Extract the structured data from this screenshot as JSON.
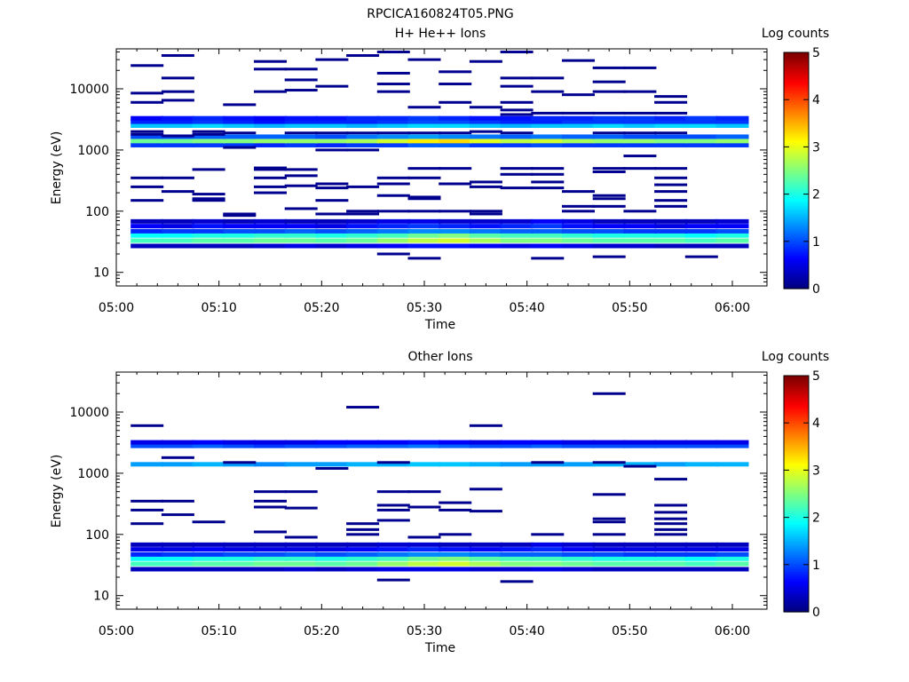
{
  "figure_title": "RPCICA160824T05.PNG",
  "chart_data": [
    {
      "type": "heatmap",
      "title": "H+ He++ Ions",
      "xlabel": "Time",
      "ylabel": "Energy (eV)",
      "x_ticks": [
        "05:00",
        "05:10",
        "05:20",
        "05:30",
        "05:40",
        "05:50",
        "06:00"
      ],
      "y_ticks": [
        "10",
        "100",
        "1000",
        "10000"
      ],
      "y_scale": "log",
      "ylim": [
        6,
        45000
      ],
      "colorbar": {
        "label": "Log counts",
        "ticks": [
          "0",
          "1",
          "2",
          "3",
          "4",
          "5"
        ],
        "range": [
          0,
          5
        ],
        "colormap": "jet"
      },
      "time_bins": [
        "05:03",
        "05:06",
        "05:09",
        "05:12",
        "05:15",
        "05:18",
        "05:21",
        "05:24",
        "05:27",
        "05:30",
        "05:33",
        "05:36",
        "05:39",
        "05:42",
        "05:45",
        "05:48",
        "05:51",
        "05:54",
        "05:57",
        "06:00"
      ],
      "energy_bands_ev": [
        {
          "energy": 27,
          "values": [
            0.3,
            0.3,
            0.3,
            0.3,
            0.4,
            0.5,
            0.4,
            0.5,
            0.6,
            0.7,
            0.7,
            0.6,
            0.5,
            0.6,
            0.5,
            0.4,
            0.4,
            0.3,
            0.3,
            0.3
          ]
        },
        {
          "energy": 33,
          "values": [
            2.2,
            2.2,
            2.3,
            2.3,
            2.4,
            2.4,
            2.3,
            2.4,
            2.6,
            2.8,
            2.9,
            2.7,
            2.5,
            2.5,
            2.4,
            2.3,
            2.3,
            2.3,
            2.2,
            2.3
          ]
        },
        {
          "energy": 40,
          "values": [
            1.9,
            1.9,
            2.0,
            2.0,
            2.1,
            2.1,
            2.0,
            2.1,
            2.2,
            2.4,
            2.5,
            2.3,
            2.2,
            2.2,
            2.1,
            2.0,
            2.0,
            2.0,
            1.9,
            2.0
          ]
        },
        {
          "energy": 47,
          "values": [
            0.8,
            0.9,
            0.9,
            1.0,
            1.0,
            1.1,
            1.0,
            1.1,
            1.2,
            1.3,
            1.3,
            1.2,
            1.1,
            1.1,
            1.0,
            1.0,
            0.9,
            0.9,
            0.9,
            1.0
          ]
        },
        {
          "energy": 57,
          "values": [
            0.6,
            0.5,
            0.7,
            0.6,
            0.6,
            0.6,
            0.5,
            0.7,
            0.8,
            0.9,
            0.8,
            0.7,
            0.8,
            0.9,
            0.7,
            0.6,
            0.6,
            0.5,
            0.6,
            0.6
          ]
        },
        {
          "energy": 68,
          "values": [
            0.3,
            0.3,
            0.4,
            0.3,
            0.4,
            0.3,
            0.3,
            0.4,
            0.5,
            0.5,
            0.4,
            0.4,
            0.4,
            0.6,
            0.5,
            0.3,
            0.3,
            0.3,
            0.3,
            0.4
          ]
        },
        {
          "energy": 1200,
          "values": [
            0.9,
            0.9,
            0.9,
            0.9,
            0.8,
            0.9,
            0.8,
            0.9,
            0.9,
            1.1,
            1.1,
            0.9,
            0.9,
            1.0,
            0.9,
            0.9,
            0.9,
            0.9,
            0.9,
            0.9
          ]
        },
        {
          "energy": 1400,
          "values": [
            2.4,
            2.4,
            2.5,
            2.5,
            2.6,
            2.6,
            2.6,
            2.7,
            2.9,
            3.2,
            3.3,
            3.0,
            2.8,
            2.9,
            2.7,
            2.6,
            2.6,
            2.5,
            2.5,
            2.6
          ]
        },
        {
          "energy": 1650,
          "values": [
            1.0,
            1.0,
            1.1,
            1.1,
            1.1,
            1.1,
            1.0,
            1.2,
            1.3,
            1.4,
            1.3,
            1.2,
            1.1,
            1.2,
            1.1,
            1.1,
            1.0,
            1.0,
            1.0,
            1.1
          ]
        },
        {
          "energy": 2500,
          "values": [
            1.6,
            1.6,
            1.7,
            1.6,
            1.5,
            1.6,
            1.6,
            1.5,
            1.6,
            1.7,
            1.7,
            1.6,
            1.5,
            1.6,
            1.6,
            1.7,
            1.6,
            1.7,
            1.7,
            1.6
          ]
        },
        {
          "energy": 2900,
          "values": [
            0.8,
            0.8,
            0.9,
            0.8,
            0.7,
            0.8,
            0.8,
            0.8,
            0.9,
            1.0,
            1.0,
            0.9,
            0.8,
            0.8,
            0.9,
            0.9,
            0.9,
            0.9,
            0.9,
            0.9
          ]
        },
        {
          "energy": 3300,
          "values": [
            0.6,
            0.7,
            0.8,
            0.7,
            0.6,
            0.7,
            0.7,
            0.8,
            0.8,
            0.9,
            0.8,
            0.7,
            0.7,
            0.8,
            0.8,
            0.9,
            0.9,
            0.8,
            0.9,
            0.8
          ]
        }
      ],
      "sparse_points": [
        {
          "t": "05:03",
          "e": [
            8500,
            6000,
            24000,
            2000,
            1800,
            250,
            150,
            350
          ]
        },
        {
          "t": "05:06",
          "e": [
            6500,
            9000,
            15000,
            35000,
            1700,
            350,
            210
          ]
        },
        {
          "t": "05:09",
          "e": [
            2000,
            1800,
            480,
            190,
            160,
            150
          ]
        },
        {
          "t": "05:12",
          "e": [
            5500,
            1900,
            1100,
            90,
            85
          ]
        },
        {
          "t": "05:15",
          "e": [
            28000,
            21000,
            9000,
            480,
            510,
            350,
            250,
            200
          ]
        },
        {
          "t": "05:18",
          "e": [
            21000,
            14000,
            9500,
            1900,
            480,
            380,
            260,
            110
          ]
        },
        {
          "t": "05:21",
          "e": [
            11000,
            30000,
            1900,
            1000,
            280,
            240,
            150,
            90
          ]
        },
        {
          "t": "05:24",
          "e": [
            35000,
            1900,
            1000,
            250,
            100,
            90
          ]
        },
        {
          "t": "05:27",
          "e": [
            40000,
            18000,
            12000,
            9000,
            1900,
            350,
            280,
            180,
            100,
            20
          ]
        },
        {
          "t": "05:30",
          "e": [
            30000,
            5000,
            1900,
            500,
            350,
            170,
            160,
            100,
            17
          ]
        },
        {
          "t": "05:33",
          "e": [
            19000,
            12000,
            6000,
            1900,
            500,
            280,
            100
          ]
        },
        {
          "t": "05:36",
          "e": [
            28000,
            5000,
            2000,
            300,
            250,
            100,
            90
          ]
        },
        {
          "t": "05:39",
          "e": [
            40000,
            15000,
            11000,
            6000,
            4500,
            3800,
            1900,
            500,
            400,
            240
          ]
        },
        {
          "t": "05:42",
          "e": [
            15000,
            9000,
            4000,
            500,
            400,
            300,
            240,
            17
          ]
        },
        {
          "t": "05:45",
          "e": [
            29000,
            8000,
            4000,
            210,
            120,
            100
          ]
        },
        {
          "t": "05:48",
          "e": [
            22000,
            13000,
            9000,
            4000,
            1900,
            500,
            440,
            180,
            160,
            120,
            18
          ]
        },
        {
          "t": "05:51",
          "e": [
            22000,
            9000,
            4000,
            1900,
            800,
            500,
            100
          ]
        },
        {
          "t": "05:54",
          "e": [
            7500,
            6000,
            4000,
            1900,
            500,
            350,
            270,
            210,
            150,
            120
          ]
        },
        {
          "t": "05:57",
          "e": [
            18
          ]
        }
      ]
    },
    {
      "type": "heatmap",
      "title": "Other Ions",
      "xlabel": "Time",
      "ylabel": "Energy (eV)",
      "x_ticks": [
        "05:00",
        "05:10",
        "05:20",
        "05:30",
        "05:40",
        "05:50",
        "06:00"
      ],
      "y_ticks": [
        "10",
        "100",
        "1000",
        "10000"
      ],
      "y_scale": "log",
      "ylim": [
        6,
        45000
      ],
      "colorbar": {
        "label": "Log counts",
        "ticks": [
          "0",
          "1",
          "2",
          "3",
          "4",
          "5"
        ],
        "range": [
          0,
          5
        ],
        "colormap": "jet"
      },
      "time_bins": [
        "05:03",
        "05:06",
        "05:09",
        "05:12",
        "05:15",
        "05:18",
        "05:21",
        "05:24",
        "05:27",
        "05:30",
        "05:33",
        "05:36",
        "05:39",
        "05:42",
        "05:45",
        "05:48",
        "05:51",
        "05:54",
        "05:57",
        "06:00"
      ],
      "energy_bands_ev": [
        {
          "energy": 27,
          "values": [
            0.3,
            0.3,
            0.3,
            0.3,
            0.3,
            0.4,
            0.3,
            0.4,
            0.5,
            0.5,
            0.5,
            0.4,
            0.4,
            0.5,
            0.4,
            0.3,
            0.3,
            0.3,
            0.3,
            0.3
          ]
        },
        {
          "energy": 33,
          "values": [
            2.2,
            2.2,
            2.3,
            2.3,
            2.4,
            2.4,
            2.3,
            2.4,
            2.6,
            2.8,
            2.9,
            2.7,
            2.5,
            2.5,
            2.4,
            2.3,
            2.3,
            2.3,
            2.2,
            2.3
          ]
        },
        {
          "energy": 40,
          "values": [
            1.9,
            1.9,
            2.0,
            2.0,
            2.1,
            2.1,
            2.0,
            2.1,
            2.2,
            2.4,
            2.5,
            2.3,
            2.2,
            2.2,
            2.1,
            2.0,
            2.0,
            2.0,
            1.9,
            2.0
          ]
        },
        {
          "energy": 47,
          "values": [
            0.8,
            0.9,
            0.9,
            1.0,
            1.0,
            1.1,
            1.0,
            1.1,
            1.2,
            1.3,
            1.3,
            1.2,
            1.1,
            1.1,
            1.0,
            1.0,
            0.9,
            0.9,
            0.9,
            1.0
          ]
        },
        {
          "energy": 57,
          "values": [
            0.5,
            0.5,
            0.6,
            0.5,
            0.5,
            0.5,
            0.5,
            0.6,
            0.7,
            0.8,
            0.7,
            0.6,
            0.7,
            0.8,
            0.6,
            0.5,
            0.5,
            0.5,
            0.5,
            0.5
          ]
        },
        {
          "energy": 68,
          "values": [
            0.3,
            0.3,
            0.3,
            0.3,
            0.3,
            0.3,
            0.3,
            0.3,
            0.4,
            0.4,
            0.3,
            0.3,
            0.3,
            0.5,
            0.4,
            0.3,
            0.3,
            0.3,
            0.3,
            0.3
          ]
        },
        {
          "energy": 1400,
          "values": [
            1.4,
            1.4,
            1.5,
            1.4,
            1.3,
            1.4,
            1.4,
            1.5,
            1.5,
            1.6,
            1.6,
            1.5,
            1.4,
            1.4,
            1.4,
            1.5,
            1.5,
            1.4,
            1.5,
            1.5
          ]
        },
        {
          "energy": 2800,
          "values": [
            1.0,
            1.0,
            1.1,
            1.0,
            0.9,
            1.0,
            1.0,
            1.1,
            1.1,
            1.2,
            1.1,
            1.0,
            1.0,
            1.1,
            1.0,
            1.0,
            1.0,
            1.0,
            1.0,
            1.0
          ]
        },
        {
          "energy": 3200,
          "values": [
            0.5,
            0.5,
            0.6,
            0.5,
            0.5,
            0.5,
            0.6,
            0.6,
            0.6,
            0.7,
            0.6,
            0.5,
            0.6,
            0.6,
            0.5,
            0.5,
            0.5,
            0.5,
            0.5,
            0.5
          ]
        }
      ],
      "sparse_points": [
        {
          "t": "05:03",
          "e": [
            6000,
            350,
            250,
            150
          ]
        },
        {
          "t": "05:06",
          "e": [
            1800,
            350,
            210
          ]
        },
        {
          "t": "05:09",
          "e": [
            160
          ]
        },
        {
          "t": "05:12",
          "e": [
            1500
          ]
        },
        {
          "t": "05:15",
          "e": [
            500,
            350,
            280,
            110
          ]
        },
        {
          "t": "05:18",
          "e": [
            500,
            270,
            90
          ]
        },
        {
          "t": "05:21",
          "e": [
            1200
          ]
        },
        {
          "t": "05:24",
          "e": [
            12000,
            150,
            120,
            100
          ]
        },
        {
          "t": "05:27",
          "e": [
            1500,
            500,
            300,
            250,
            170,
            18
          ]
        },
        {
          "t": "05:30",
          "e": [
            500,
            280,
            90
          ]
        },
        {
          "t": "05:33",
          "e": [
            330,
            250,
            100
          ]
        },
        {
          "t": "05:36",
          "e": [
            6000,
            550,
            240
          ]
        },
        {
          "t": "05:39",
          "e": [
            17
          ]
        },
        {
          "t": "05:42",
          "e": [
            1500,
            100
          ]
        },
        {
          "t": "05:48",
          "e": [
            20000,
            1500,
            450,
            180,
            160,
            100
          ]
        },
        {
          "t": "05:51",
          "e": [
            1300
          ]
        },
        {
          "t": "05:54",
          "e": [
            800,
            300,
            230,
            180,
            150,
            120,
            100
          ]
        }
      ]
    }
  ]
}
